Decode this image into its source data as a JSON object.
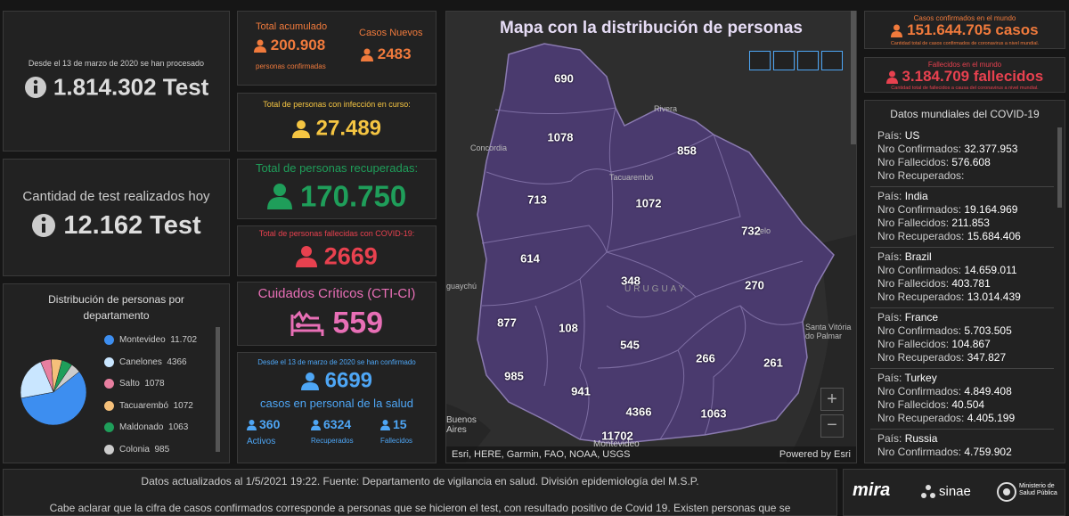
{
  "tests_total": {
    "caption": "Desde el 13 de marzo de 2020 se han procesado",
    "value": "1.814.302 Test"
  },
  "tests_today": {
    "caption": "Cantidad de test realizados hoy",
    "value": "12.162 Test"
  },
  "cases": {
    "total_label": "Total acumulado",
    "total": "200.908",
    "total_sub": "personas confirmadas",
    "new_label": "Casos Nuevos",
    "new": "2483"
  },
  "active": {
    "label": "Total de personas con infección en curso:",
    "value": "27.489"
  },
  "recovered": {
    "label": "Total de personas recuperadas:",
    "value": "170.750"
  },
  "deaths": {
    "label": "Total de personas fallecidas con COVID-19:",
    "value": "2669"
  },
  "critical": {
    "label": "Cuidados Críticos (CTI-CI)",
    "value": "559"
  },
  "health_staff": {
    "caption": "Desde el 13 de marzo de 2020 se han confirmado",
    "value": "6699",
    "label": "casos en personal de la salud",
    "stats": [
      {
        "value": "360",
        "label": "Activos"
      },
      {
        "value": "6324",
        "label": "Recuperados"
      },
      {
        "value": "15",
        "label": "Fallecidos"
      }
    ]
  },
  "map": {
    "title": "Mapa con la distribución de personas",
    "attribution": "Esri, HERE, Garmin, FAO, NOAA, USGS",
    "powered": "Powered by Esri",
    "counts": [
      "690",
      "1078",
      "858",
      "713",
      "1072",
      "732",
      "614",
      "348",
      "270",
      "877",
      "108",
      "545",
      "266",
      "261",
      "985",
      "941",
      "4366",
      "1063",
      "11702"
    ],
    "places": [
      "Rivera",
      "Concordia",
      "Tacuarembó",
      "elo",
      "guaychú",
      "URUGUAY",
      "Santa Vitória do Palmar",
      "Buenos Aires",
      "Montevideo"
    ]
  },
  "world_cases": {
    "label": "Casos confirmados en el mundo",
    "value": "151.644.705 casos",
    "note": "Cantidad total de casos confirmados de coronavirus a nivel mundial."
  },
  "world_deaths": {
    "label": "Fallecidos en el mundo",
    "value": "3.184.709 fallecidos",
    "note": "Cantidad total de fallecidos a causa del coronavirus a nivel mundial."
  },
  "world_list": {
    "title": "Datos mundiales del COVID-19",
    "field_labels": {
      "country": "País:",
      "confirmed": "Nro Confirmados:",
      "deaths": "Nro Fallecidos:",
      "recovered": "Nro Recuperados:"
    },
    "countries": [
      {
        "country": "US",
        "confirmed": "32.377.953",
        "deaths": "576.608",
        "recovered": ""
      },
      {
        "country": "India",
        "confirmed": "19.164.969",
        "deaths": "211.853",
        "recovered": "15.684.406"
      },
      {
        "country": "Brazil",
        "confirmed": "14.659.011",
        "deaths": "403.781",
        "recovered": "13.014.439"
      },
      {
        "country": "France",
        "confirmed": "5.703.505",
        "deaths": "104.867",
        "recovered": "347.827"
      },
      {
        "country": "Turkey",
        "confirmed": "4.849.408",
        "deaths": "40.504",
        "recovered": "4.405.199"
      },
      {
        "country": "Russia",
        "confirmed": "4.759.902"
      }
    ]
  },
  "chart_data": {
    "type": "pie",
    "title": "Distribución de personas por departamento",
    "categories": [
      "Montevideo",
      "Canelones",
      "Salto",
      "Tacuarembó",
      "Maldonado",
      "Colonia"
    ],
    "values": [
      11702,
      4366,
      1078,
      1072,
      1063,
      985
    ],
    "value_labels": [
      "11.702",
      "4366",
      "1078",
      "1072",
      "1063",
      "985"
    ],
    "colors": [
      "#3d8ef0",
      "#c9e6ff",
      "#e87fa0",
      "#f5c07a",
      "#1f9e5a",
      "#cccccc"
    ]
  },
  "footer": {
    "line1": "Datos actualizados al 1/5/2021 19:22. Fuente: Departamento de vigilancia en salud. División epidemiología del M.S.P.",
    "line2": "Cabe aclarar que la cifra de casos confirmados corresponde a personas que se hicieron el test, con resultado positivo de Covid 19. Existen personas que se",
    "logos": [
      "mira",
      "sinae",
      "Ministerio de Salud Pública"
    ]
  }
}
